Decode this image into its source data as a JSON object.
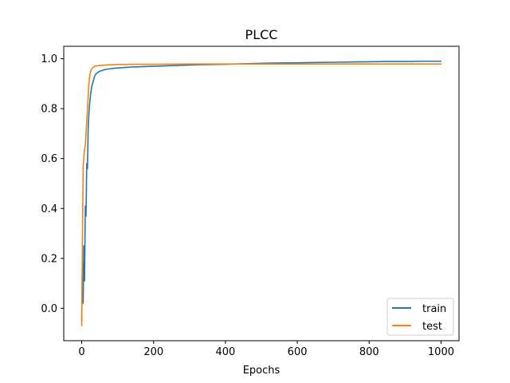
{
  "chart_data": {
    "type": "line",
    "title": "PLCC",
    "xlabel": "Epochs",
    "ylabel": "",
    "xlim": [
      -50,
      1050
    ],
    "ylim": [
      -0.13,
      1.05
    ],
    "xticks": [
      0,
      200,
      400,
      600,
      800,
      1000
    ],
    "yticks": [
      0.0,
      0.2,
      0.4,
      0.6,
      0.8,
      1.0
    ],
    "xtick_labels": [
      "0",
      "200",
      "400",
      "600",
      "800",
      "1000"
    ],
    "ytick_labels": [
      "0.0",
      "0.2",
      "0.4",
      "0.6",
      "0.8",
      "1.0"
    ],
    "grid": false,
    "legend_position": "lower-right",
    "series": [
      {
        "name": "train",
        "color": "#1f77b4",
        "x": [
          0,
          2,
          4,
          6,
          8,
          10,
          12,
          14,
          16,
          18,
          20,
          22,
          25,
          28,
          32,
          36,
          40,
          45,
          50,
          55,
          60,
          70,
          80,
          90,
          100,
          120,
          140,
          160,
          180,
          200,
          240,
          280,
          320,
          360,
          400,
          450,
          500,
          550,
          600,
          650,
          700,
          750,
          800,
          850,
          900,
          950,
          1000
        ],
        "y": [
          -0.05,
          0.18,
          0.02,
          0.25,
          0.11,
          0.41,
          0.37,
          0.58,
          0.56,
          0.72,
          0.78,
          0.82,
          0.86,
          0.89,
          0.91,
          0.93,
          0.94,
          0.945,
          0.95,
          0.952,
          0.955,
          0.958,
          0.96,
          0.962,
          0.963,
          0.965,
          0.967,
          0.968,
          0.969,
          0.97,
          0.972,
          0.974,
          0.976,
          0.977,
          0.978,
          0.98,
          0.982,
          0.983,
          0.984,
          0.985,
          0.986,
          0.987,
          0.988,
          0.989,
          0.989,
          0.99,
          0.99
        ]
      },
      {
        "name": "test",
        "color": "#ff7f0e",
        "x": [
          0,
          2,
          4,
          6,
          8,
          10,
          12,
          14,
          16,
          18,
          20,
          22,
          25,
          28,
          32,
          36,
          40,
          45,
          50,
          60,
          70,
          80,
          100,
          150,
          200,
          300,
          400,
          500,
          600,
          700,
          800,
          900,
          1000
        ],
        "y": [
          -0.07,
          0.25,
          0.57,
          0.6,
          0.64,
          0.65,
          0.7,
          0.75,
          0.8,
          0.85,
          0.9,
          0.93,
          0.95,
          0.96,
          0.965,
          0.97,
          0.971,
          0.972,
          0.973,
          0.974,
          0.975,
          0.976,
          0.977,
          0.978,
          0.978,
          0.979,
          0.979,
          0.979,
          0.979,
          0.979,
          0.979,
          0.979,
          0.979
        ]
      }
    ]
  }
}
